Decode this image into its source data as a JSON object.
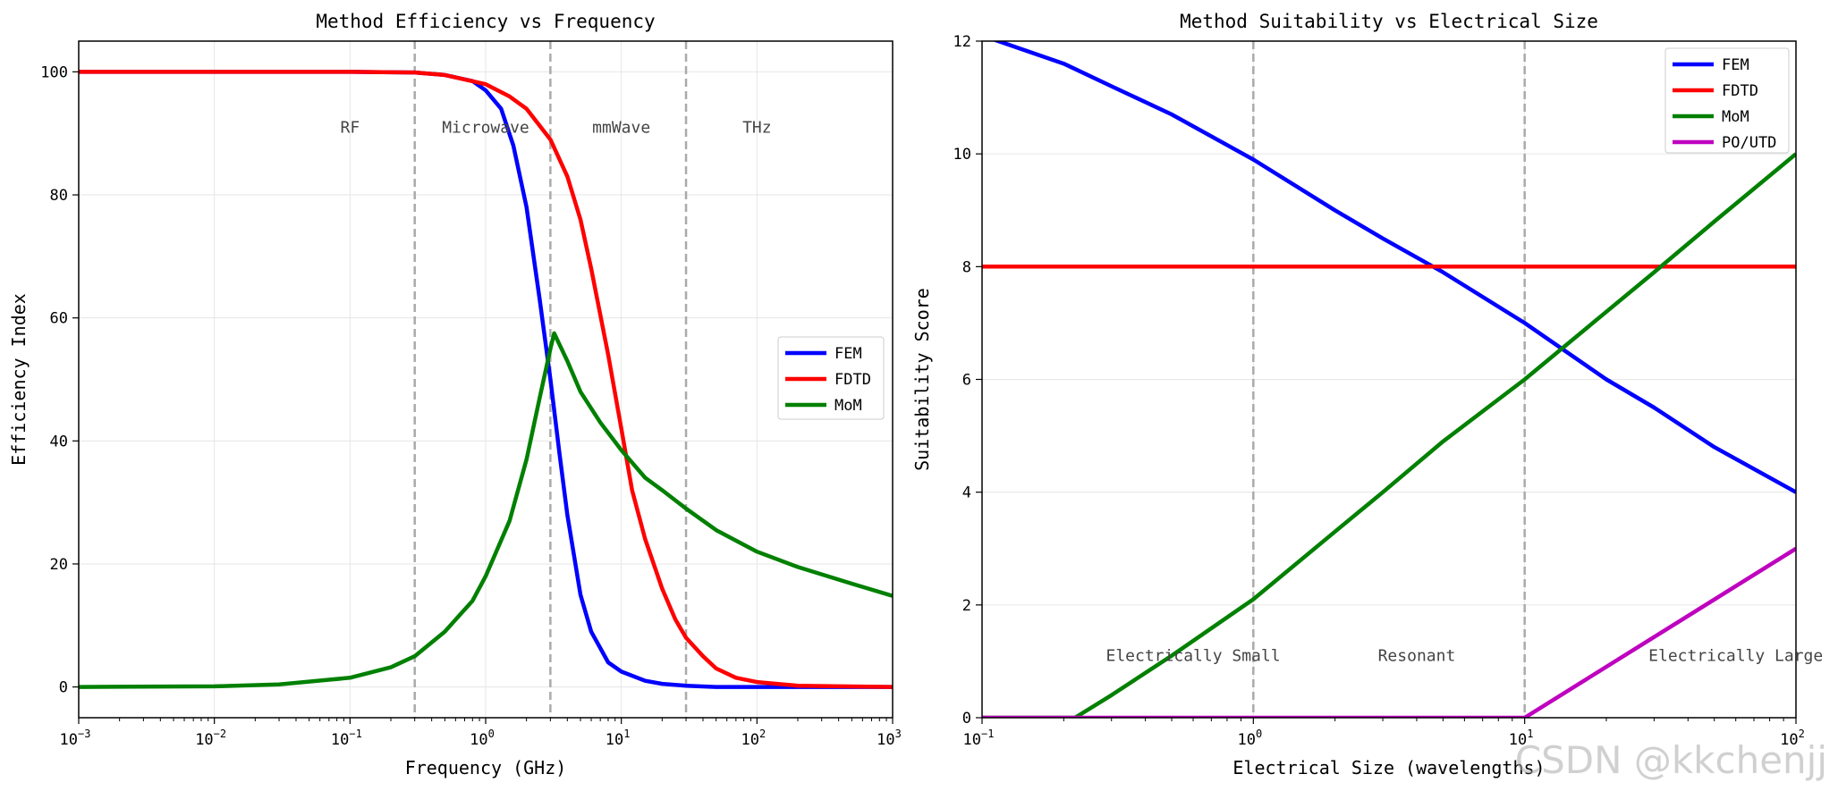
{
  "watermark": "CSDN @kkchenjj",
  "colors": {
    "FEM": "#0000ff",
    "FDTD": "#ff0000",
    "MoM": "#008000",
    "PO/UTD": "#bf00bf",
    "divider": "#aaaaaa",
    "grid": "#e6e6e6"
  },
  "chart_data": [
    {
      "type": "line",
      "title": "Method Efficiency vs Frequency",
      "xlabel": "Frequency (GHz)",
      "ylabel": "Efficiency Index",
      "xscale": "log",
      "xlim": [
        0.001,
        1000
      ],
      "ylim": [
        -5,
        105
      ],
      "xticks": [
        {
          "value": 0.001,
          "label": "10",
          "exp": "−3"
        },
        {
          "value": 0.01,
          "label": "10",
          "exp": "−2"
        },
        {
          "value": 0.1,
          "label": "10",
          "exp": "−1"
        },
        {
          "value": 1,
          "label": "10",
          "exp": "0"
        },
        {
          "value": 10,
          "label": "10",
          "exp": "1"
        },
        {
          "value": 100,
          "label": "10",
          "exp": "2"
        },
        {
          "value": 1000,
          "label": "10",
          "exp": "3"
        }
      ],
      "yticks": [
        0,
        20,
        40,
        60,
        80,
        100
      ],
      "grid": true,
      "legend_position": "center-right",
      "dividers": [
        0.3,
        3,
        30
      ],
      "region_labels": [
        {
          "text": "RF",
          "x": 0.1,
          "y": 91
        },
        {
          "text": "Microwave",
          "x": 1.0,
          "y": 91
        },
        {
          "text": "mmWave",
          "x": 10,
          "y": 91
        },
        {
          "text": "THz",
          "x": 100,
          "y": 91
        }
      ],
      "series": [
        {
          "name": "FEM",
          "x": [
            0.001,
            0.01,
            0.1,
            0.3,
            0.5,
            0.8,
            1.0,
            1.3,
            1.6,
            2.0,
            2.5,
            3.0,
            3.5,
            4.0,
            5.0,
            6.0,
            8.0,
            10,
            15,
            20,
            30,
            50,
            100,
            1000
          ],
          "y": [
            100,
            100,
            100,
            99.9,
            99.5,
            98.5,
            97,
            94,
            88,
            78,
            63,
            50,
            38,
            28,
            15,
            9,
            4,
            2.5,
            1,
            0.5,
            0.2,
            0,
            0,
            0
          ]
        },
        {
          "name": "FDTD",
          "x": [
            0.001,
            0.01,
            0.1,
            0.3,
            0.5,
            1.0,
            1.5,
            2.0,
            3.0,
            4.0,
            5.0,
            6.0,
            8.0,
            10,
            12,
            15,
            20,
            25,
            30,
            40,
            50,
            70,
            100,
            200,
            1000
          ],
          "y": [
            100,
            100,
            100,
            99.9,
            99.5,
            98,
            96,
            94,
            89,
            83,
            76,
            68,
            54,
            42,
            32,
            24,
            16,
            11,
            8,
            5,
            3,
            1.5,
            0.8,
            0.2,
            0
          ]
        },
        {
          "name": "MoM",
          "x": [
            0.001,
            0.01,
            0.03,
            0.1,
            0.2,
            0.3,
            0.5,
            0.8,
            1.0,
            1.5,
            2.0,
            2.5,
            3.0,
            3.2,
            4.0,
            5.0,
            7.0,
            10,
            15,
            20,
            30,
            50,
            100,
            200,
            500,
            1000
          ],
          "y": [
            0,
            0.1,
            0.4,
            1.5,
            3.2,
            5,
            9,
            14,
            18,
            27,
            37,
            47,
            55,
            57.5,
            53,
            48,
            43,
            38.5,
            34,
            32,
            29,
            25.5,
            22,
            19.5,
            16.8,
            14.8
          ]
        }
      ]
    },
    {
      "type": "line",
      "title": "Method Suitability vs Electrical Size",
      "xlabel": "Electrical Size (wavelengths)",
      "ylabel": "Suitability Score",
      "xscale": "log",
      "xlim": [
        0.1,
        100
      ],
      "ylim": [
        0,
        12
      ],
      "xticks": [
        {
          "value": 0.1,
          "label": "10",
          "exp": "−1"
        },
        {
          "value": 1,
          "label": "10",
          "exp": "0"
        },
        {
          "value": 10,
          "label": "10",
          "exp": "1"
        },
        {
          "value": 100,
          "label": "10",
          "exp": "2"
        }
      ],
      "yticks": [
        0,
        2,
        4,
        6,
        8,
        10,
        12
      ],
      "grid": true,
      "legend_position": "top-right",
      "dividers": [
        1,
        10
      ],
      "region_labels": [
        {
          "text": "Electrically Small",
          "x": 0.6,
          "y": 1.1
        },
        {
          "text": "Resonant",
          "x": 4.0,
          "y": 1.1
        },
        {
          "text": "Electrically Large",
          "x": 60,
          "y": 1.1
        }
      ],
      "series": [
        {
          "name": "FEM",
          "x": [
            0.1,
            0.2,
            0.3,
            0.5,
            1,
            2,
            3,
            5,
            10,
            20,
            30,
            50,
            100
          ],
          "y": [
            12.1,
            11.6,
            11.2,
            10.7,
            9.9,
            9.0,
            8.5,
            7.9,
            7.0,
            6.0,
            5.5,
            4.8,
            4.0
          ]
        },
        {
          "name": "FDTD",
          "x": [
            0.1,
            100
          ],
          "y": [
            8,
            8
          ]
        },
        {
          "name": "MoM",
          "x": [
            0.1,
            0.22,
            0.3,
            0.5,
            1,
            2,
            3,
            5,
            10,
            20,
            30,
            50,
            100
          ],
          "y": [
            0,
            0,
            0.4,
            1.1,
            2.1,
            3.3,
            4.0,
            4.9,
            6.0,
            7.2,
            7.9,
            8.8,
            10.0
          ]
        },
        {
          "name": "PO/UTD",
          "x": [
            0.1,
            10,
            100
          ],
          "y": [
            0,
            0,
            3
          ]
        }
      ]
    }
  ]
}
